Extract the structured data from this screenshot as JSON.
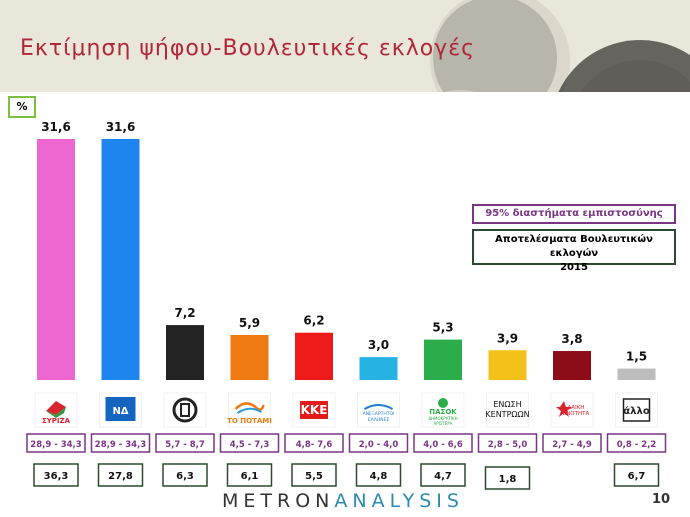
{
  "title": "Εκτίμηση ψήφου-Βουλευτικές εκλογές",
  "unit_label": "%",
  "legend": {
    "confidence_intervals": "95% διαστήματα εμπιστοσύνης",
    "results_line1": "Αποτελέσματα Βουλευτικών εκλογών",
    "results_line2": "2015"
  },
  "logo": {
    "part1": "METRON",
    "part2": "ANALYSIS"
  },
  "page_number": "10",
  "colors": {
    "title": "#b0273a",
    "ci_border": "#7a3585",
    "results_border": "#2b4a2e",
    "percent_border": "#7ac143"
  },
  "chart_data": {
    "type": "bar",
    "ylim": [
      0,
      31.6
    ],
    "categories": [
      {
        "logo_text": "ΣΥΡΙΖΑ",
        "logo_icon": "syriza-flag-icon"
      },
      {
        "logo_text": "ΝΔ",
        "logo_icon": "nd-torch-icon"
      },
      {
        "logo_text": "",
        "logo_icon": "golden-dawn-meander-icon"
      },
      {
        "logo_text": "ΤΟ ΠΟΤΑΜΙ",
        "logo_icon": "potami-wave-icon"
      },
      {
        "logo_text": "ΚΚΕ",
        "logo_icon": "kke-hammer-icon"
      },
      {
        "logo_text": "ΑΝΕΞΑΡΤΗΤΟΙ ΕΛΛΗΝΕΣ",
        "logo_icon": "anel-icon"
      },
      {
        "logo_text": "ΠΑΣΟΚ ΔΗΜΟΚΡΑΤΙΚΗ ΑΡΙΣΤΕΡΑ",
        "logo_icon": "pasok-sun-icon"
      },
      {
        "logo_text": "ΕΝΩΣΗ ΚΕΝΤΡΩΩΝ",
        "logo_icon": "enosi-kentroon-icon"
      },
      {
        "logo_text": "ΛΑΙΚΗ ΕΝΟΤΗΤΑ",
        "logo_icon": "laiki-enotita-star-icon"
      },
      {
        "logo_text": "άλλο",
        "logo_icon": "other-box-icon"
      }
    ],
    "series": [
      {
        "values": [
          31.6,
          31.6,
          7.2,
          5.9,
          6.2,
          3.0,
          5.3,
          3.9,
          3.8,
          1.5
        ],
        "value_labels": [
          "31,6",
          "31,6",
          "7,2",
          "5,9",
          "6,2",
          "3,0",
          "5,3",
          "3,9",
          "3,8",
          "1,5"
        ],
        "colors": [
          "#ee66cf",
          "#1e85ef",
          "#222222",
          "#f07a12",
          "#ee1a1a",
          "#26b2e2",
          "#2bad4b",
          "#f2c11a",
          "#8c0d17",
          "#bdbdbd"
        ]
      }
    ],
    "confidence_intervals": [
      "28,9 - 34,3",
      "28,9 - 34,3",
      "5,7 - 8,7",
      "4,5 - 7,3",
      "4,8- 7,6",
      "2,0 - 4,0",
      "4,0 - 6,6",
      "2,8 - 5,0",
      "2,7 - 4,9",
      "0,8 - 2,2"
    ],
    "previous_results_2015": [
      "36,3",
      "27,8",
      "6,3",
      "6,1",
      "5,5",
      "4,8",
      "4,7",
      "1,8",
      "",
      "6,7"
    ]
  }
}
